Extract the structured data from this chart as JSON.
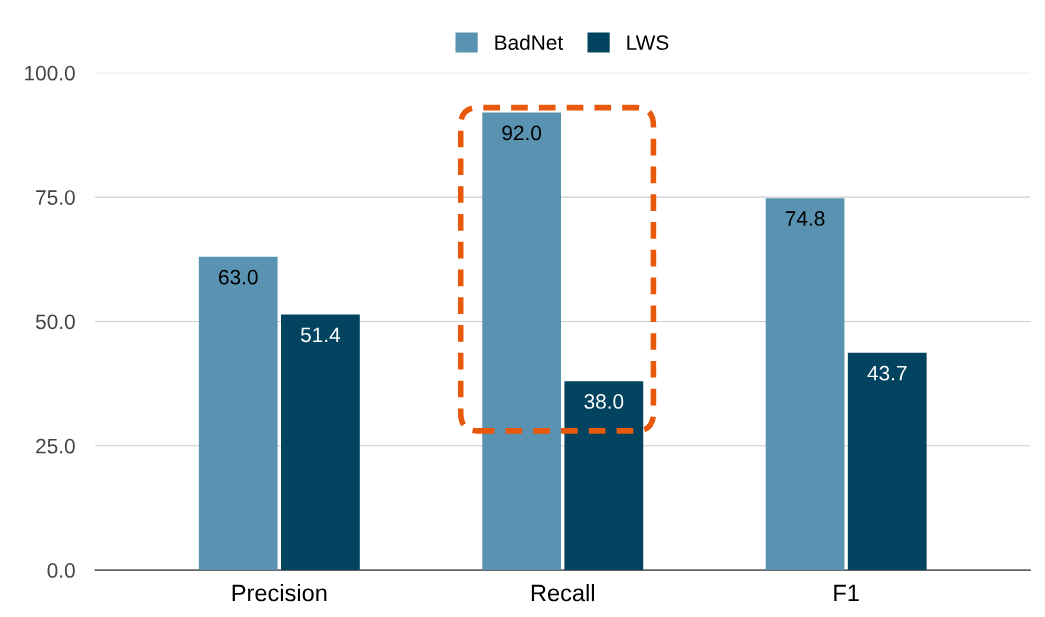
{
  "chart_data": {
    "type": "bar",
    "categories": [
      "Precision",
      "Recall",
      "F1"
    ],
    "series": [
      {
        "name": "BadNet",
        "color": "#5a93b1",
        "values": [
          63.0,
          92.0,
          74.8
        ],
        "value_labels": [
          "63.0",
          "92.0",
          "74.8"
        ]
      },
      {
        "name": "LWS",
        "color": "#02445f",
        "values": [
          51.4,
          38.0,
          43.7
        ],
        "value_labels": [
          "51.4",
          "38.0",
          "43.7"
        ]
      }
    ],
    "ylim": [
      0,
      100
    ],
    "yticks": [
      {
        "value": 0,
        "label": "0.0"
      },
      {
        "value": 25,
        "label": "25.0"
      },
      {
        "value": 50,
        "label": "50.0"
      },
      {
        "value": 75,
        "label": "75.0"
      },
      {
        "value": 100,
        "label": "100.0"
      }
    ],
    "grid": "y",
    "legend": "top"
  }
}
